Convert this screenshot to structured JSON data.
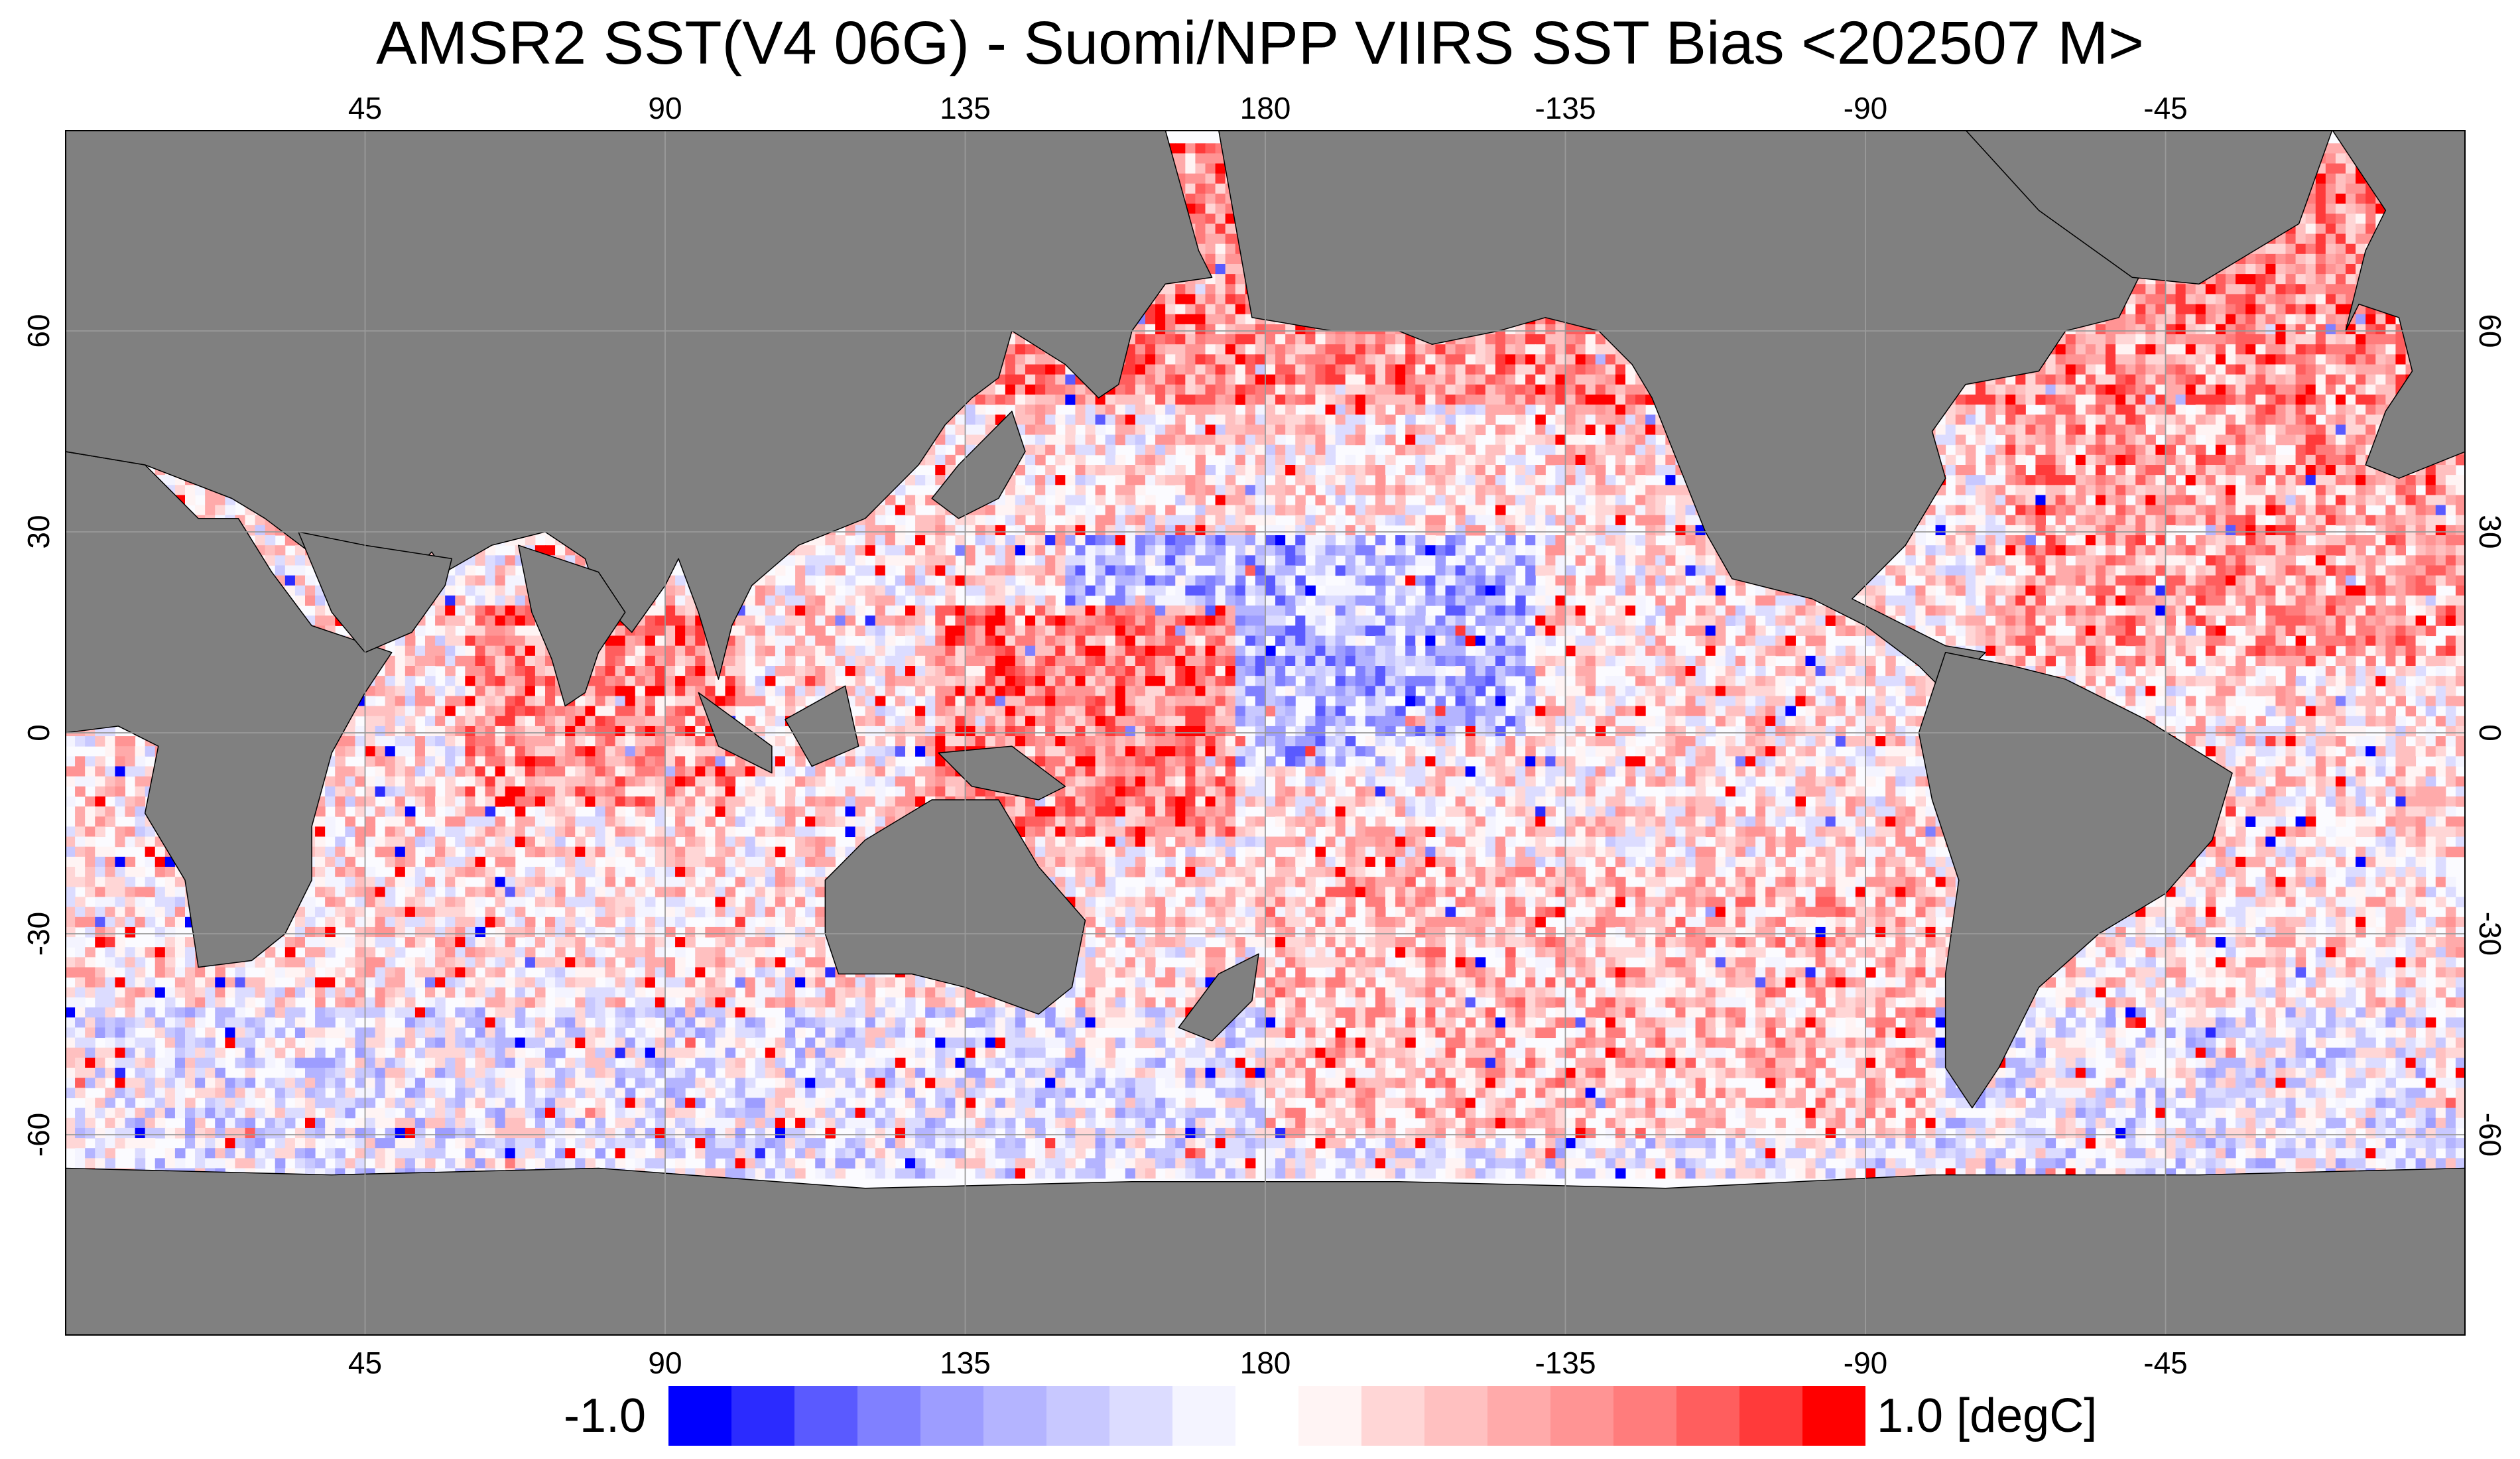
{
  "title": "AMSR2 SST(V4 06G) - Suomi/NPP VIIRS SST Bias <202507 M>",
  "map": {
    "land_color": "#808080",
    "grid_color": "#9a9a9a",
    "coast_color": "#000000",
    "projection": "equirectangular, centered on 180",
    "lon_ticks": [
      "45",
      "90",
      "135",
      "180",
      "-135",
      "-90",
      "-45"
    ],
    "lat_ticks": [
      "60",
      "30",
      "0",
      "-30",
      "-60"
    ],
    "lon_range": [
      0,
      360
    ],
    "lat_range": [
      -90,
      90
    ]
  },
  "colorbar": {
    "min_label": "-1.0",
    "max_label": "1.0 [degC]",
    "colors": [
      "#0000ff",
      "#2b2bff",
      "#5a5aff",
      "#8080ff",
      "#9d9dff",
      "#b4b4ff",
      "#c8c8ff",
      "#dcdcff",
      "#f4f4ff",
      "#ffffff",
      "#fff4f4",
      "#ffd6d6",
      "#ffc0c0",
      "#ffaaaa",
      "#ff9494",
      "#ff7c7c",
      "#ff5e5e",
      "#ff3a3a",
      "#ff0000"
    ]
  }
}
